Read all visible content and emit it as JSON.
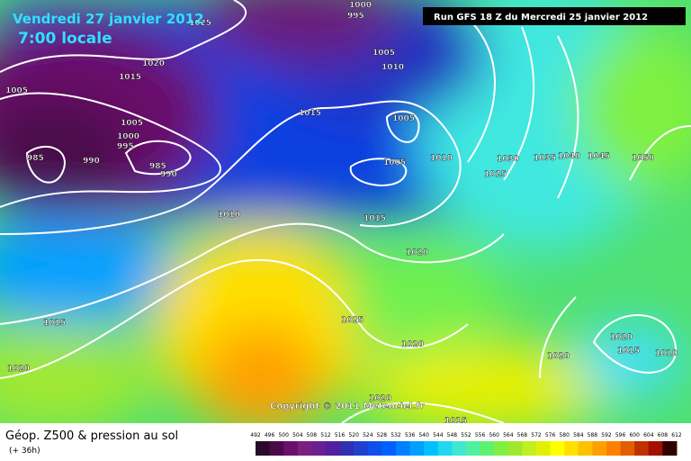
{
  "header": {
    "date": "Vendredi 27 janvier 2012",
    "time": "7:00 locale",
    "run": "Run GFS 18 Z du Mercredi 25 janvier 2012"
  },
  "isobars": [
    "1025",
    "1000",
    "995",
    "1005",
    "1010",
    "1020",
    "1015",
    "1005",
    "1005",
    "1000",
    "995",
    "985",
    "990",
    "985",
    "990",
    "1015",
    "1005",
    "1005",
    "1010",
    "1030",
    "1035",
    "1040",
    "1045",
    "1050",
    "1025",
    "1010",
    "1015",
    "1020",
    "1025",
    "1020",
    "1015",
    "1020",
    "1020",
    "1015",
    "1020",
    "1010",
    "1020",
    "1015"
  ],
  "legend": {
    "ticks": [
      492,
      496,
      500,
      504,
      508,
      512,
      516,
      520,
      524,
      528,
      532,
      536,
      540,
      544,
      548,
      552,
      556,
      560,
      564,
      568,
      572,
      576,
      580,
      584,
      588,
      592,
      596,
      600,
      604,
      608,
      612
    ],
    "colors": [
      "#2a0a2a",
      "#4a0a4a",
      "#6a106a",
      "#7a2080",
      "#6a2090",
      "#5020a0",
      "#3030b0",
      "#2040d0",
      "#1050e8",
      "#0060ff",
      "#0080ff",
      "#00a0ff",
      "#00c0ff",
      "#20d8f0",
      "#40e8d0",
      "#50f0a0",
      "#60f070",
      "#80f040",
      "#a0e830",
      "#c0f020",
      "#e0f000",
      "#ffff00",
      "#ffe000",
      "#ffc000",
      "#ffa000",
      "#ff8000",
      "#e06000",
      "#c03000",
      "#a01000",
      "#300000"
    ]
  },
  "footer": {
    "title": "Géop. Z500 & pression au sol",
    "subtitle": "(+ 36h)",
    "copyright": "Copyright © 2011 Meteociel.fr"
  }
}
